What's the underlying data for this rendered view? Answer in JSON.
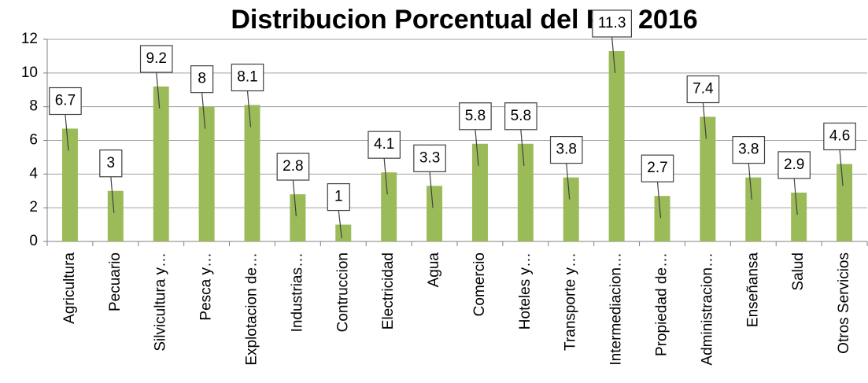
{
  "chart_data": {
    "type": "bar",
    "title": "Distribucion Porcentual del PIB 2016",
    "categories": [
      "Agricultura",
      "Pecuario",
      "Silvicultura y…",
      "Pesca y…",
      "Explotacion de…",
      "Industrias…",
      "Contruccion",
      "Electricidad",
      "Agua",
      "Comercio",
      "Hoteles y…",
      "Transporte y…",
      "Intermediacion…",
      "Propiedad de…",
      "Administracion…",
      "Enseñansa",
      "Salud",
      "Otros Servicios"
    ],
    "values": [
      6.7,
      3,
      9.2,
      8,
      8.1,
      2.8,
      1,
      4.1,
      3.3,
      5.8,
      5.8,
      3.8,
      11.3,
      2.7,
      7.4,
      3.8,
      2.9,
      4.6
    ],
    "color": "#9bbb59",
    "ylim": [
      0,
      12
    ],
    "yticks": [
      0,
      2,
      4,
      6,
      8,
      10,
      12
    ],
    "grid": true
  }
}
